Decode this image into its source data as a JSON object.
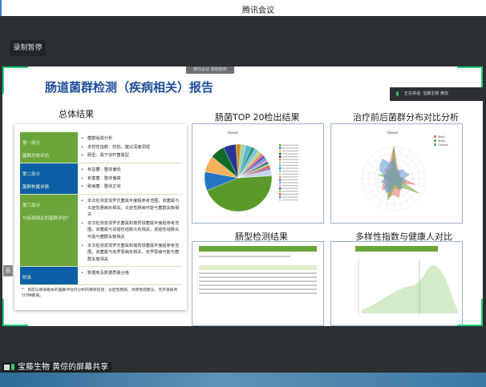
{
  "app": {
    "title": "腾讯会议",
    "record_button": "录制暂停",
    "record_tag": "腾讯会议 录制暂停",
    "speaking": "正在讲话: 宝藤生物 黄倧",
    "share_label": "宝藤生物 黄倧的屏幕共享"
  },
  "slide": {
    "title": "肠道菌群检测（疾病相关）报告",
    "sections": {
      "summary": "总体结果",
      "top20": "肠菌TOP 20检出结果",
      "compare": "治疗前后菌群分布对比分析",
      "enterotype": "肠型检测结果",
      "diversity": "多样性指数与健康人对比"
    },
    "table": [
      {
        "part": "第一部分",
        "name": "菌群总体评估",
        "color": "green",
        "items": [
          "菌群组成分析",
          "多样性指数：较低，建议深度调理",
          "肠型：属于拟杆菌属型"
        ]
      },
      {
        "part": "第二部分",
        "name": "菌群种属详情",
        "color": "blue",
        "items": [
          "有益菌：整体偏低",
          "有害菌：整体偏高",
          "致病菌：整体正常"
        ]
      },
      {
        "part": "第三部分",
        "name": "与疾病相关的菌群评估*",
        "color": "green",
        "items": [
          "本次检测发现罗氏菌属丰度超参考范围，该菌属与炎症性肠病负相关，炎症性肠病可能与菌群失衡相关",
          "本次检测发现罗氏菌属和瘤胃球菌属丰度超参考范围，该菌属与诱癌性结肠炎负相关，诱癌性结肠炎可能与菌群失衡相关",
          "本次检测发现罗氏菌属和瘤胃球菌属丰度超参考范围，该菌属与克罗恩病负相关，克罗恩病可能与菌群失衡相关"
        ]
      },
      {
        "part": "附录",
        "name": "",
        "color": "blue",
        "items": [
          "数据库及数据质量合格"
        ]
      }
    ],
    "footnote": "*：目前与疾病相关的菌群评估可分析的疾病包括：炎症性肠病、诱癌性结肠炎、克罗恩病共计3种疾病。"
  },
  "chart_data": [
    {
      "type": "pie",
      "title": "Genus",
      "values": [
        45,
        9,
        8,
        7,
        6,
        2.5,
        2.5,
        2.5,
        2,
        2,
        1.5,
        1.5,
        1.5,
        1.2,
        1,
        1,
        1,
        1,
        1,
        3
      ],
      "colors": [
        "#5a9a2a",
        "#2577c1",
        "#f7b35c",
        "#0f6b2a",
        "#283593",
        "#c8922a",
        "#9fd3a3",
        "#52b4d6",
        "#3a9a7a",
        "#7fc3e8",
        "#b9d97a",
        "#e58a74",
        "#7d4fb0",
        "#4fa3d0",
        "#f28fb4",
        "#1f5fa8",
        "#a2c94f",
        "#d9534f",
        "#8e6bbf",
        "#c9d6e8"
      ]
    },
    {
      "type": "radar",
      "title": "Genus",
      "series": [
        {
          "name": "Test1",
          "color": "#e8776d"
        },
        {
          "name": "Test2",
          "color": "#7aa83b"
        },
        {
          "name": "Control",
          "color": "#5b9bd5"
        }
      ]
    }
  ],
  "colors": {
    "accent_green": "#6aa53a",
    "accent_blue": "#0d5fa6",
    "title_blue": "#1f4e9a",
    "bracket": "#23d17a"
  }
}
